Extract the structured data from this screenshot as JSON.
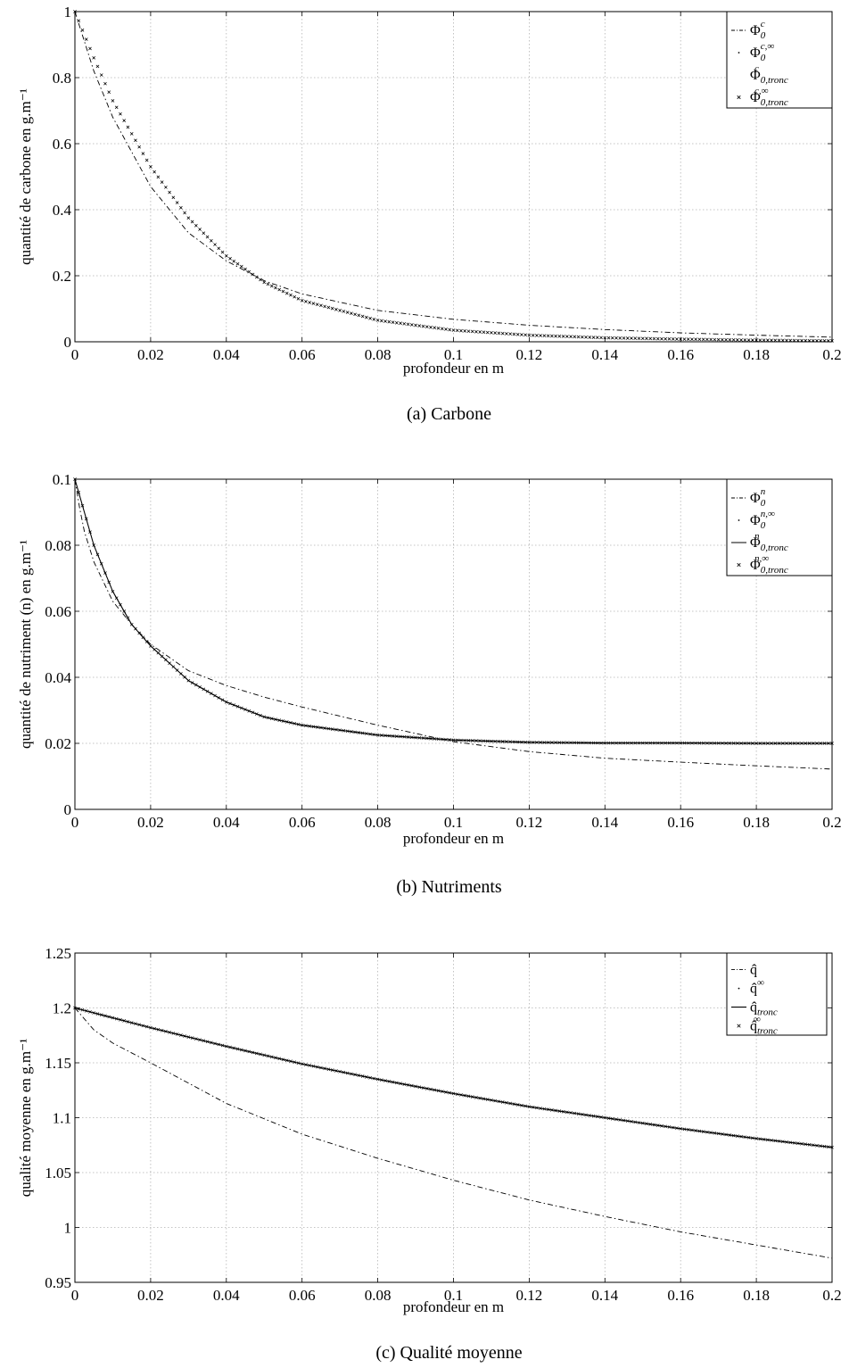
{
  "chart_data": [
    {
      "type": "line",
      "caption": "(a) Carbone",
      "xlabel": "profondeur en m",
      "ylabel": "quantité de carbone en g.m⁻¹",
      "xlim": [
        0,
        0.2
      ],
      "ylim": [
        0,
        1
      ],
      "xticks": [
        "0",
        "0.02",
        "0.04",
        "0.06",
        "0.08",
        "0.1",
        "0.12",
        "0.14",
        "0.16",
        "0.18",
        "0.2"
      ],
      "yticks": [
        "0",
        "0.2",
        "0.4",
        "0.6",
        "0.8",
        "1"
      ],
      "grid": true,
      "legend_position": "top-right",
      "series": [
        {
          "name": "Φ0^c",
          "sym": "Φ",
          "sub": "0",
          "sup": "c",
          "style": "dashdot",
          "x": [
            0,
            0.005,
            0.01,
            0.02,
            0.03,
            0.04,
            0.05,
            0.06,
            0.08,
            0.1,
            0.12,
            0.14,
            0.16,
            0.18,
            0.2
          ],
          "y": [
            1,
            0.82,
            0.68,
            0.47,
            0.33,
            0.245,
            0.185,
            0.145,
            0.095,
            0.068,
            0.05,
            0.037,
            0.027,
            0.02,
            0.014
          ]
        },
        {
          "name": "Φ0^c,∞",
          "sym": "Φ",
          "sub": "0",
          "sup": "c,∞",
          "style": "dots",
          "x": [
            0,
            0.005,
            0.01,
            0.02,
            0.03,
            0.04,
            0.05,
            0.06,
            0.08,
            0.1,
            0.12,
            0.14,
            0.16,
            0.18,
            0.2
          ],
          "y": [
            1,
            0.86,
            0.73,
            0.53,
            0.375,
            0.26,
            0.18,
            0.125,
            0.065,
            0.035,
            0.02,
            0.012,
            0.008,
            0.005,
            0.003
          ]
        },
        {
          "name": "Φ0,tronc^c",
          "sym": "Φ",
          "sub": "0,tronc",
          "sup": "c",
          "style": "none",
          "x": [],
          "y": []
        },
        {
          "name": "Φ0,tronc^c,∞",
          "sym": "Φ",
          "sub": "0,tronc",
          "sup": "c,∞",
          "style": "cross",
          "x": [
            0,
            0.005,
            0.01,
            0.02,
            0.03,
            0.04,
            0.05,
            0.06,
            0.08,
            0.1,
            0.12,
            0.14,
            0.16,
            0.18,
            0.2
          ],
          "y": [
            1,
            0.86,
            0.73,
            0.53,
            0.375,
            0.26,
            0.18,
            0.125,
            0.065,
            0.035,
            0.02,
            0.012,
            0.008,
            0.005,
            0.003
          ]
        }
      ]
    },
    {
      "type": "line",
      "caption": "(b) Nutriments",
      "xlabel": "profondeur en m",
      "ylabel": "quantité de nutriment (n) en g.m⁻¹",
      "xlim": [
        0,
        0.2
      ],
      "ylim": [
        0,
        0.1
      ],
      "xticks": [
        "0",
        "0.02",
        "0.04",
        "0.06",
        "0.08",
        "0.1",
        "0.12",
        "0.14",
        "0.16",
        "0.18",
        "0.2"
      ],
      "yticks": [
        "0",
        "0.02",
        "0.04",
        "0.06",
        "0.08",
        "0.1"
      ],
      "grid": true,
      "legend_position": "top-right",
      "series": [
        {
          "name": "Φ0^n",
          "sym": "Φ",
          "sub": "0",
          "sup": "n",
          "style": "dashdot",
          "x": [
            0,
            0.002,
            0.005,
            0.01,
            0.015,
            0.02,
            0.03,
            0.04,
            0.05,
            0.06,
            0.08,
            0.1,
            0.12,
            0.14,
            0.16,
            0.18,
            0.2
          ],
          "y": [
            0.1,
            0.086,
            0.075,
            0.063,
            0.056,
            0.05,
            0.042,
            0.0375,
            0.034,
            0.031,
            0.0255,
            0.0205,
            0.0175,
            0.0155,
            0.0143,
            0.0132,
            0.0122
          ]
        },
        {
          "name": "Φ0^n,∞",
          "sym": "Φ",
          "sub": "0",
          "sup": "n,∞",
          "style": "dots",
          "x": [
            0,
            0.005,
            0.01,
            0.015,
            0.02,
            0.03,
            0.04,
            0.05,
            0.06,
            0.08,
            0.1,
            0.12,
            0.14,
            0.16,
            0.18,
            0.2
          ],
          "y": [
            0.1,
            0.08,
            0.066,
            0.056,
            0.0495,
            0.039,
            0.0325,
            0.028,
            0.0255,
            0.0225,
            0.021,
            0.0203,
            0.0201,
            0.0201,
            0.02,
            0.02
          ]
        },
        {
          "name": "Φ0,tronc^n",
          "sym": "Φ",
          "sub": "0,tronc",
          "sup": "n",
          "style": "solid",
          "x": [
            0,
            0.005,
            0.01,
            0.015,
            0.02,
            0.03,
            0.04,
            0.05,
            0.06,
            0.08,
            0.1,
            0.12,
            0.14,
            0.16,
            0.18,
            0.2
          ],
          "y": [
            0.1,
            0.08,
            0.066,
            0.056,
            0.0495,
            0.039,
            0.0325,
            0.028,
            0.0255,
            0.0225,
            0.021,
            0.0203,
            0.0201,
            0.0201,
            0.02,
            0.02
          ]
        },
        {
          "name": "Φ0,tronc^n,∞",
          "sym": "Φ",
          "sub": "0,tronc",
          "sup": "n,∞",
          "style": "cross",
          "x": [
            0,
            0.005,
            0.01,
            0.015,
            0.02,
            0.03,
            0.04,
            0.05,
            0.06,
            0.08,
            0.1,
            0.12,
            0.14,
            0.16,
            0.18,
            0.2
          ],
          "y": [
            0.1,
            0.08,
            0.066,
            0.056,
            0.0495,
            0.039,
            0.0325,
            0.028,
            0.0255,
            0.0225,
            0.021,
            0.0203,
            0.0201,
            0.0201,
            0.02,
            0.02
          ]
        }
      ]
    },
    {
      "type": "line",
      "caption": "(c) Qualité moyenne",
      "xlabel": "profondeur en m",
      "ylabel": "qualité moyenne en g.m⁻¹",
      "xlim": [
        0,
        0.2
      ],
      "ylim": [
        0.95,
        1.25
      ],
      "xticks": [
        "0",
        "0.02",
        "0.04",
        "0.06",
        "0.08",
        "0.1",
        "0.12",
        "0.14",
        "0.16",
        "0.18",
        "0.2"
      ],
      "yticks": [
        "0.95",
        "1",
        "1.05",
        "1.1",
        "1.15",
        "1.2",
        "1.25"
      ],
      "grid": true,
      "legend_position": "top-right",
      "series": [
        {
          "name": "q̂",
          "sym": "q̂",
          "sub": "",
          "sup": "",
          "style": "dashdot",
          "x": [
            0,
            0.005,
            0.01,
            0.02,
            0.04,
            0.06,
            0.08,
            0.1,
            0.12,
            0.14,
            0.16,
            0.18,
            0.2
          ],
          "y": [
            1.2,
            1.18,
            1.168,
            1.15,
            1.113,
            1.085,
            1.063,
            1.043,
            1.025,
            1.01,
            0.996,
            0.984,
            0.972
          ]
        },
        {
          "name": "q̂^∞",
          "sym": "q̂",
          "sub": "",
          "sup": "∞",
          "style": "dots",
          "x": [
            0,
            0.02,
            0.04,
            0.06,
            0.08,
            0.1,
            0.12,
            0.14,
            0.16,
            0.18,
            0.2
          ],
          "y": [
            1.2,
            1.182,
            1.165,
            1.149,
            1.135,
            1.122,
            1.11,
            1.1,
            1.09,
            1.081,
            1.073
          ]
        },
        {
          "name": "q̂tronc",
          "sym": "q̂",
          "sub": "tronc",
          "sup": "",
          "style": "solid",
          "x": [
            0,
            0.02,
            0.04,
            0.06,
            0.08,
            0.1,
            0.12,
            0.14,
            0.16,
            0.18,
            0.2
          ],
          "y": [
            1.2,
            1.182,
            1.165,
            1.149,
            1.135,
            1.122,
            1.11,
            1.1,
            1.09,
            1.081,
            1.073
          ]
        },
        {
          "name": "q̂tronc^∞",
          "sym": "q̂",
          "sub": "tronc",
          "sup": "∞",
          "style": "cross",
          "x": [
            0,
            0.02,
            0.04,
            0.06,
            0.08,
            0.1,
            0.12,
            0.14,
            0.16,
            0.18,
            0.2
          ],
          "y": [
            1.2,
            1.182,
            1.165,
            1.149,
            1.135,
            1.122,
            1.11,
            1.1,
            1.09,
            1.081,
            1.073
          ]
        }
      ]
    }
  ]
}
